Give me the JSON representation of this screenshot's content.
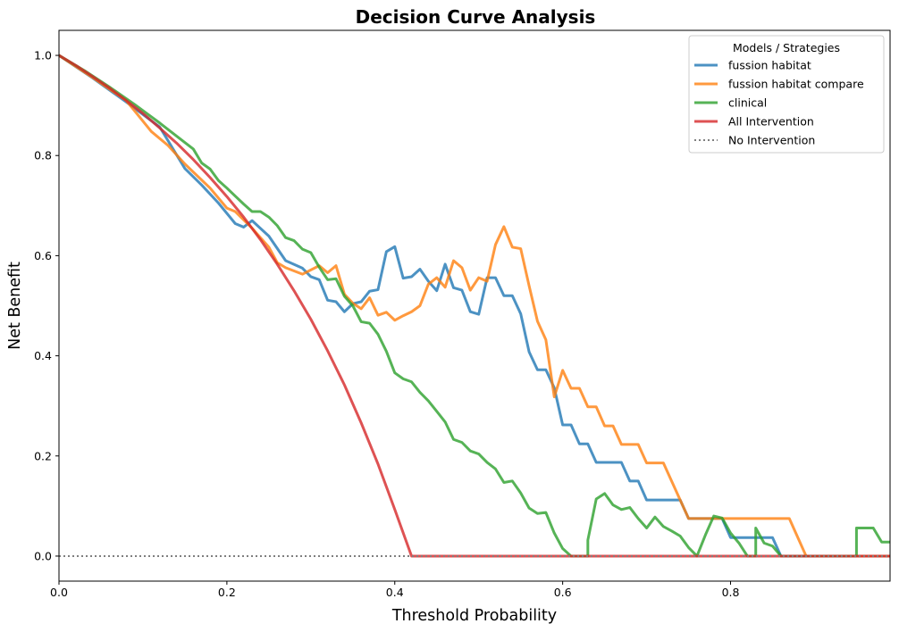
{
  "chart_data": {
    "type": "line",
    "title": "Decision Curve Analysis",
    "xlabel": "Threshold Probability",
    "ylabel": "Net Benefit",
    "xlim": [
      0.0,
      0.99
    ],
    "ylim": [
      -0.05,
      1.05
    ],
    "x_ticks": [
      0.0,
      0.2,
      0.4,
      0.6,
      0.8
    ],
    "x_tick_labels": [
      "0.0",
      "0.2",
      "0.4",
      "0.6",
      "0.8"
    ],
    "y_ticks": [
      0.0,
      0.2,
      0.4,
      0.6,
      0.8,
      1.0
    ],
    "y_tick_labels": [
      "0.0",
      "0.2",
      "0.4",
      "0.6",
      "0.8",
      "1.0"
    ],
    "grid": false,
    "legend": {
      "title": "Models / Strategies",
      "placement": "top-right"
    },
    "series": [
      {
        "name": "fussion habitat",
        "color": "#1f77b4",
        "style": "solid",
        "points": [
          [
            0.0,
            1.0
          ],
          [
            0.04,
            0.955
          ],
          [
            0.08,
            0.907
          ],
          [
            0.12,
            0.857
          ],
          [
            0.15,
            0.774
          ],
          [
            0.17,
            0.741
          ],
          [
            0.19,
            0.705
          ],
          [
            0.21,
            0.664
          ],
          [
            0.22,
            0.657
          ],
          [
            0.23,
            0.67
          ],
          [
            0.25,
            0.639
          ],
          [
            0.27,
            0.59
          ],
          [
            0.29,
            0.575
          ],
          [
            0.3,
            0.558
          ],
          [
            0.31,
            0.552
          ],
          [
            0.32,
            0.511
          ],
          [
            0.33,
            0.508
          ],
          [
            0.34,
            0.488
          ],
          [
            0.35,
            0.504
          ],
          [
            0.36,
            0.508
          ],
          [
            0.37,
            0.529
          ],
          [
            0.38,
            0.532
          ],
          [
            0.39,
            0.608
          ],
          [
            0.4,
            0.618
          ],
          [
            0.41,
            0.555
          ],
          [
            0.42,
            0.558
          ],
          [
            0.43,
            0.573
          ],
          [
            0.44,
            0.549
          ],
          [
            0.45,
            0.53
          ],
          [
            0.46,
            0.583
          ],
          [
            0.47,
            0.536
          ],
          [
            0.48,
            0.531
          ],
          [
            0.49,
            0.488
          ],
          [
            0.5,
            0.483
          ],
          [
            0.51,
            0.556
          ],
          [
            0.52,
            0.556
          ],
          [
            0.53,
            0.52
          ],
          [
            0.54,
            0.52
          ],
          [
            0.55,
            0.484
          ],
          [
            0.56,
            0.408
          ],
          [
            0.57,
            0.372
          ],
          [
            0.58,
            0.372
          ],
          [
            0.59,
            0.336
          ],
          [
            0.6,
            0.262
          ],
          [
            0.61,
            0.262
          ],
          [
            0.62,
            0.224
          ],
          [
            0.63,
            0.224
          ],
          [
            0.64,
            0.187
          ],
          [
            0.65,
            0.187
          ],
          [
            0.66,
            0.187
          ],
          [
            0.67,
            0.187
          ],
          [
            0.68,
            0.15
          ],
          [
            0.69,
            0.15
          ],
          [
            0.7,
            0.112
          ],
          [
            0.71,
            0.112
          ],
          [
            0.72,
            0.112
          ],
          [
            0.73,
            0.112
          ],
          [
            0.74,
            0.112
          ],
          [
            0.75,
            0.075
          ],
          [
            0.76,
            0.075
          ],
          [
            0.77,
            0.075
          ],
          [
            0.78,
            0.075
          ],
          [
            0.79,
            0.075
          ],
          [
            0.8,
            0.037
          ],
          [
            0.81,
            0.037
          ],
          [
            0.82,
            0.037
          ],
          [
            0.83,
            0.037
          ],
          [
            0.84,
            0.037
          ],
          [
            0.85,
            0.037
          ],
          [
            0.86,
            0.0
          ],
          [
            0.99,
            0.0
          ]
        ]
      },
      {
        "name": "fussion habitat compare",
        "color": "#ff7f0e",
        "style": "solid",
        "points": [
          [
            0.0,
            1.0
          ],
          [
            0.04,
            0.956
          ],
          [
            0.08,
            0.91
          ],
          [
            0.11,
            0.848
          ],
          [
            0.13,
            0.82
          ],
          [
            0.15,
            0.783
          ],
          [
            0.18,
            0.735
          ],
          [
            0.2,
            0.695
          ],
          [
            0.21,
            0.688
          ],
          [
            0.23,
            0.655
          ],
          [
            0.25,
            0.617
          ],
          [
            0.26,
            0.586
          ],
          [
            0.27,
            0.576
          ],
          [
            0.29,
            0.563
          ],
          [
            0.31,
            0.58
          ],
          [
            0.32,
            0.566
          ],
          [
            0.33,
            0.58
          ],
          [
            0.34,
            0.523
          ],
          [
            0.35,
            0.505
          ],
          [
            0.36,
            0.494
          ],
          [
            0.37,
            0.516
          ],
          [
            0.38,
            0.481
          ],
          [
            0.39,
            0.487
          ],
          [
            0.4,
            0.471
          ],
          [
            0.41,
            0.48
          ],
          [
            0.42,
            0.488
          ],
          [
            0.43,
            0.5
          ],
          [
            0.44,
            0.543
          ],
          [
            0.45,
            0.556
          ],
          [
            0.46,
            0.537
          ],
          [
            0.47,
            0.59
          ],
          [
            0.48,
            0.576
          ],
          [
            0.49,
            0.531
          ],
          [
            0.5,
            0.556
          ],
          [
            0.51,
            0.549
          ],
          [
            0.52,
            0.622
          ],
          [
            0.53,
            0.658
          ],
          [
            0.54,
            0.617
          ],
          [
            0.55,
            0.614
          ],
          [
            0.56,
            0.54
          ],
          [
            0.57,
            0.469
          ],
          [
            0.58,
            0.432
          ],
          [
            0.59,
            0.318
          ],
          [
            0.6,
            0.371
          ],
          [
            0.61,
            0.335
          ],
          [
            0.62,
            0.335
          ],
          [
            0.63,
            0.298
          ],
          [
            0.64,
            0.298
          ],
          [
            0.65,
            0.26
          ],
          [
            0.66,
            0.26
          ],
          [
            0.67,
            0.223
          ],
          [
            0.68,
            0.223
          ],
          [
            0.69,
            0.223
          ],
          [
            0.7,
            0.186
          ],
          [
            0.71,
            0.186
          ],
          [
            0.72,
            0.186
          ],
          [
            0.73,
            0.149
          ],
          [
            0.74,
            0.112
          ],
          [
            0.75,
            0.075
          ],
          [
            0.86,
            0.075
          ],
          [
            0.87,
            0.075
          ],
          [
            0.89,
            0.0
          ],
          [
            0.99,
            0.0
          ]
        ]
      },
      {
        "name": "clinical",
        "color": "#2ca02c",
        "style": "solid",
        "points": [
          [
            0.0,
            1.0
          ],
          [
            0.03,
            0.97
          ],
          [
            0.06,
            0.937
          ],
          [
            0.09,
            0.902
          ],
          [
            0.12,
            0.865
          ],
          [
            0.15,
            0.826
          ],
          [
            0.16,
            0.813
          ],
          [
            0.17,
            0.785
          ],
          [
            0.18,
            0.773
          ],
          [
            0.19,
            0.75
          ],
          [
            0.2,
            0.735
          ],
          [
            0.21,
            0.719
          ],
          [
            0.22,
            0.703
          ],
          [
            0.23,
            0.688
          ],
          [
            0.24,
            0.688
          ],
          [
            0.25,
            0.677
          ],
          [
            0.26,
            0.66
          ],
          [
            0.27,
            0.636
          ],
          [
            0.28,
            0.63
          ],
          [
            0.29,
            0.613
          ],
          [
            0.3,
            0.606
          ],
          [
            0.31,
            0.577
          ],
          [
            0.32,
            0.552
          ],
          [
            0.33,
            0.554
          ],
          [
            0.34,
            0.519
          ],
          [
            0.35,
            0.5
          ],
          [
            0.36,
            0.468
          ],
          [
            0.37,
            0.465
          ],
          [
            0.38,
            0.443
          ],
          [
            0.39,
            0.409
          ],
          [
            0.4,
            0.366
          ],
          [
            0.41,
            0.354
          ],
          [
            0.42,
            0.348
          ],
          [
            0.43,
            0.327
          ],
          [
            0.44,
            0.31
          ],
          [
            0.45,
            0.289
          ],
          [
            0.46,
            0.268
          ],
          [
            0.47,
            0.233
          ],
          [
            0.48,
            0.227
          ],
          [
            0.49,
            0.21
          ],
          [
            0.5,
            0.204
          ],
          [
            0.51,
            0.187
          ],
          [
            0.52,
            0.174
          ],
          [
            0.53,
            0.147
          ],
          [
            0.54,
            0.15
          ],
          [
            0.55,
            0.126
          ],
          [
            0.56,
            0.096
          ],
          [
            0.57,
            0.085
          ],
          [
            0.58,
            0.087
          ],
          [
            0.59,
            0.046
          ],
          [
            0.6,
            0.015
          ],
          [
            0.61,
            0.0
          ],
          [
            0.63,
            0.0
          ],
          [
            0.63,
            0.032
          ],
          [
            0.64,
            0.114
          ],
          [
            0.65,
            0.125
          ],
          [
            0.66,
            0.102
          ],
          [
            0.67,
            0.093
          ],
          [
            0.68,
            0.097
          ],
          [
            0.69,
            0.075
          ],
          [
            0.7,
            0.056
          ],
          [
            0.71,
            0.078
          ],
          [
            0.72,
            0.059
          ],
          [
            0.73,
            0.05
          ],
          [
            0.74,
            0.04
          ],
          [
            0.75,
            0.017
          ],
          [
            0.76,
            0.0
          ],
          [
            0.77,
            0.042
          ],
          [
            0.78,
            0.08
          ],
          [
            0.79,
            0.076
          ],
          [
            0.8,
            0.046
          ],
          [
            0.81,
            0.026
          ],
          [
            0.82,
            0.0
          ],
          [
            0.83,
            0.0
          ],
          [
            0.83,
            0.056
          ],
          [
            0.84,
            0.026
          ],
          [
            0.85,
            0.02
          ],
          [
            0.86,
            0.0
          ],
          [
            0.95,
            0.0
          ],
          [
            0.95,
            0.056
          ],
          [
            0.97,
            0.056
          ],
          [
            0.98,
            0.028
          ],
          [
            0.99,
            0.028
          ]
        ]
      },
      {
        "name": "All Intervention",
        "color": "#d62728",
        "style": "solid",
        "points": [
          [
            0.0,
            1.0
          ],
          [
            0.02,
            0.98
          ],
          [
            0.04,
            0.958
          ],
          [
            0.06,
            0.935
          ],
          [
            0.08,
            0.91
          ],
          [
            0.1,
            0.884
          ],
          [
            0.12,
            0.855
          ],
          [
            0.14,
            0.825
          ],
          [
            0.16,
            0.792
          ],
          [
            0.18,
            0.756
          ],
          [
            0.2,
            0.718
          ],
          [
            0.22,
            0.677
          ],
          [
            0.24,
            0.632
          ],
          [
            0.26,
            0.583
          ],
          [
            0.28,
            0.53
          ],
          [
            0.3,
            0.473
          ],
          [
            0.32,
            0.41
          ],
          [
            0.34,
            0.342
          ],
          [
            0.36,
            0.266
          ],
          [
            0.38,
            0.184
          ],
          [
            0.4,
            0.093
          ],
          [
            0.42,
            0.0
          ],
          [
            0.43,
            0.0
          ],
          [
            0.99,
            0.0
          ]
        ]
      },
      {
        "name": "No Intervention",
        "color": "#7f7f7f",
        "style": "dotted",
        "points": [
          [
            0.0,
            0.0
          ],
          [
            0.99,
            0.0
          ]
        ]
      }
    ]
  }
}
